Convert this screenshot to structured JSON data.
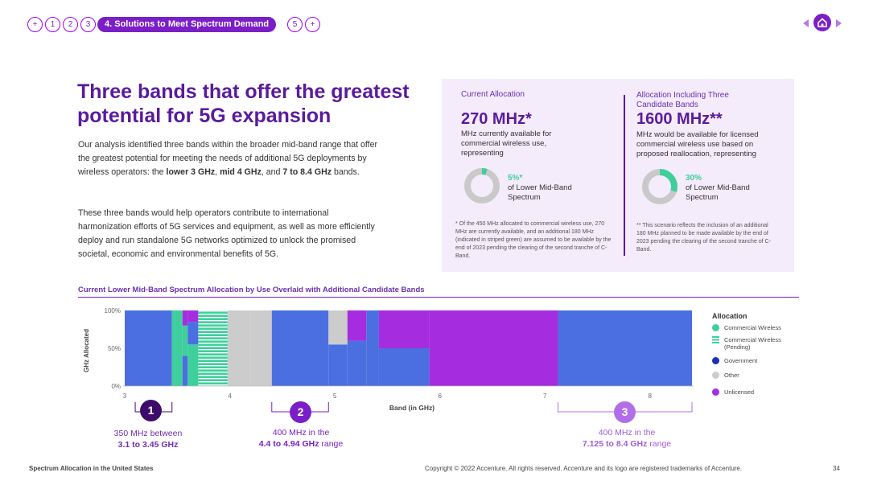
{
  "nav": {
    "items": [
      "+",
      "1",
      "2",
      "3"
    ],
    "active_label": "4. Solutions to Meet Spectrum Demand",
    "after_items": [
      "5",
      "+"
    ]
  },
  "heading": "Three bands that offer the greatest potential for 5G expansion",
  "para1": {
    "text_a": "Our analysis identified three bands within the broader mid-band range that offer the greatest potential for meeting the needs of additional 5G deployments by wireless operators: the ",
    "b1": "lower 3 GHz",
    "sep1": ", ",
    "b2": "mid 4 GHz",
    "sep2": ", and ",
    "b3": "7 to 8.4 GHz",
    "text_end": " bands."
  },
  "para2": "These three bands would help operators contribute to international harmonization efforts of 5G services and equipment, as well as more efficiently deploy and run standalone 5G networks optimized to unlock the promised societal, economic and environmental benefits of 5G.",
  "panel": {
    "left": {
      "label": "Current Allocation",
      "value": "270 MHz*",
      "desc": "MHz currently available for commercial wireless use, representing",
      "pct": "5%*",
      "pct_desc": "of Lower Mid-Band Spectrum",
      "pct_value": 5,
      "footnote": "* Of the 450 MHz allocated to commercial wireless use, 270 MHz are currently available, and an additional 180 MHz (indicated in striped green) are assumed to be available by the end of 2023 pending the clearing of the second tranche of C-Band."
    },
    "right": {
      "label": "Allocation Including Three Candidate Bands",
      "value": "1600 MHz**",
      "desc": "MHz would be available for licensed commercial wireless use based on proposed reallocation, representing",
      "pct": "30%",
      "pct_desc": "of Lower Mid-Band Spectrum",
      "pct_value": 30,
      "footnote": "** This scenario reflects the inclusion of an additional 180 MHz planned to be made available by the end of 2023 pending the clearing of the second tranche of C-Band."
    }
  },
  "chart_data": {
    "type": "area",
    "title": "Current Lower Mid-Band Spectrum Allocation by Use Overlaid with Additional Candidate Bands",
    "xlabel": "Band (in GHz)",
    "ylabel": "GHz Allocated",
    "xlim": [
      3,
      8.4
    ],
    "ylim": [
      0,
      100
    ],
    "x_ticks": [
      "3",
      "4",
      "5",
      "6",
      "7",
      "8"
    ],
    "y_ticks": [
      "100%",
      "50%",
      "0%"
    ],
    "legend_title": "Allocation",
    "legend": [
      {
        "name": "Commercial Wireless",
        "color": "#3ecf9c",
        "striped": false
      },
      {
        "name": "Commercial Wireless (Pending)",
        "color": "#3ecf9c",
        "striped": true
      },
      {
        "name": "Government",
        "color": "#4b6fe0",
        "striped": false
      },
      {
        "name": "Other",
        "color": "#cccccc",
        "striped": false
      },
      {
        "name": "Unlicensed",
        "color": "#a62ce0",
        "striped": false
      }
    ],
    "segments": [
      {
        "x0": 3.0,
        "x1": 3.45,
        "stack": [
          [
            "Government",
            100
          ]
        ]
      },
      {
        "x0": 3.45,
        "x1": 3.55,
        "stack": [
          [
            "Commercial Wireless",
            100
          ]
        ]
      },
      {
        "x0": 3.55,
        "x1": 3.6,
        "stack": [
          [
            "Government",
            40
          ],
          [
            "Commercial Wireless",
            40
          ],
          [
            "Unlicensed",
            20
          ]
        ]
      },
      {
        "x0": 3.6,
        "x1": 3.7,
        "stack": [
          [
            "Commercial Wireless",
            55
          ],
          [
            "Government",
            30
          ],
          [
            "Unlicensed",
            15
          ]
        ]
      },
      {
        "x0": 3.7,
        "x1": 3.98,
        "stack": [
          [
            "Commercial Wireless (Pending)",
            100
          ]
        ]
      },
      {
        "x0": 3.98,
        "x1": 4.2,
        "stack": [
          [
            "Other",
            100
          ]
        ]
      },
      {
        "x0": 4.2,
        "x1": 4.4,
        "stack": [
          [
            "Other",
            100
          ]
        ]
      },
      {
        "x0": 4.4,
        "x1": 4.94,
        "stack": [
          [
            "Government",
            100
          ]
        ]
      },
      {
        "x0": 4.94,
        "x1": 5.12,
        "stack": [
          [
            "Government",
            55
          ],
          [
            "Other",
            45
          ]
        ]
      },
      {
        "x0": 5.12,
        "x1": 5.3,
        "stack": [
          [
            "Government",
            60
          ],
          [
            "Unlicensed",
            40
          ]
        ]
      },
      {
        "x0": 5.3,
        "x1": 5.42,
        "stack": [
          [
            "Government",
            100
          ]
        ]
      },
      {
        "x0": 5.42,
        "x1": 5.9,
        "stack": [
          [
            "Government",
            50
          ],
          [
            "Unlicensed",
            50
          ]
        ]
      },
      {
        "x0": 5.9,
        "x1": 7.125,
        "stack": [
          [
            "Unlicensed",
            100
          ]
        ]
      },
      {
        "x0": 7.125,
        "x1": 8.4,
        "stack": [
          [
            "Government",
            100
          ]
        ]
      }
    ],
    "callouts": [
      {
        "num": "1",
        "line1": "350 MHz between",
        "line2": "3.1 to 3.45 GHz",
        "range": [
          3.1,
          3.45
        ]
      },
      {
        "num": "2",
        "line1": "400 MHz in the",
        "line2b": "4.4 to 4.94 GHz",
        "line2r": " range",
        "range": [
          4.4,
          4.94
        ]
      },
      {
        "num": "3",
        "line1": "400 MHz in the",
        "line2b": "7.125 to 8.4 GHz",
        "line2r": " range",
        "range": [
          7.125,
          8.4
        ]
      }
    ]
  },
  "footer": {
    "left": "Spectrum Allocation in the United States",
    "copyright": "Copyright © 2022 Accenture. All rights reserved. Accenture and its logo are registered trademarks of Accenture.",
    "page": "34"
  }
}
